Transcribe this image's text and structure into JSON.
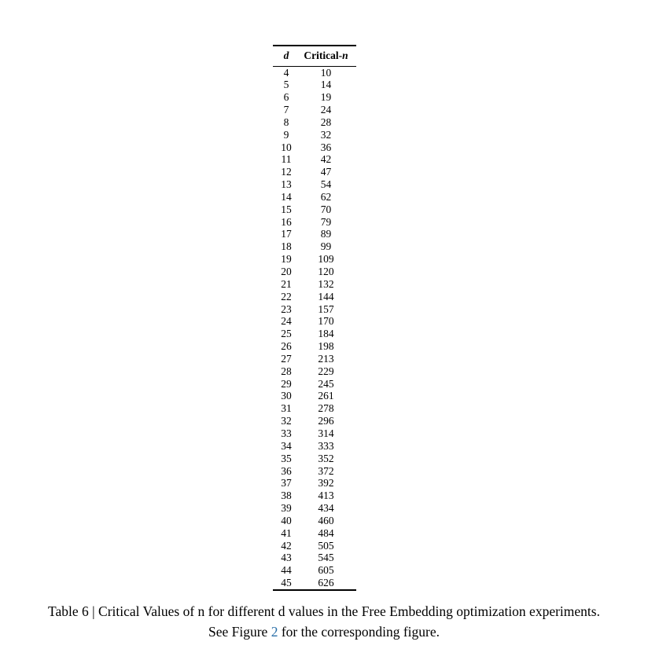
{
  "table": {
    "header": {
      "col_d": "d",
      "col_n_prefix": "Critical-",
      "col_n_italic": "n"
    },
    "rows": [
      {
        "d": "4",
        "n": "10"
      },
      {
        "d": "5",
        "n": "14"
      },
      {
        "d": "6",
        "n": "19"
      },
      {
        "d": "7",
        "n": "24"
      },
      {
        "d": "8",
        "n": "28"
      },
      {
        "d": "9",
        "n": "32"
      },
      {
        "d": "10",
        "n": "36"
      },
      {
        "d": "11",
        "n": "42"
      },
      {
        "d": "12",
        "n": "47"
      },
      {
        "d": "13",
        "n": "54"
      },
      {
        "d": "14",
        "n": "62"
      },
      {
        "d": "15",
        "n": "70"
      },
      {
        "d": "16",
        "n": "79"
      },
      {
        "d": "17",
        "n": "89"
      },
      {
        "d": "18",
        "n": "99"
      },
      {
        "d": "19",
        "n": "109"
      },
      {
        "d": "20",
        "n": "120"
      },
      {
        "d": "21",
        "n": "132"
      },
      {
        "d": "22",
        "n": "144"
      },
      {
        "d": "23",
        "n": "157"
      },
      {
        "d": "24",
        "n": "170"
      },
      {
        "d": "25",
        "n": "184"
      },
      {
        "d": "26",
        "n": "198"
      },
      {
        "d": "27",
        "n": "213"
      },
      {
        "d": "28",
        "n": "229"
      },
      {
        "d": "29",
        "n": "245"
      },
      {
        "d": "30",
        "n": "261"
      },
      {
        "d": "31",
        "n": "278"
      },
      {
        "d": "32",
        "n": "296"
      },
      {
        "d": "33",
        "n": "314"
      },
      {
        "d": "34",
        "n": "333"
      },
      {
        "d": "35",
        "n": "352"
      },
      {
        "d": "36",
        "n": "372"
      },
      {
        "d": "37",
        "n": "392"
      },
      {
        "d": "38",
        "n": "413"
      },
      {
        "d": "39",
        "n": "434"
      },
      {
        "d": "40",
        "n": "460"
      },
      {
        "d": "41",
        "n": "484"
      },
      {
        "d": "42",
        "n": "505"
      },
      {
        "d": "43",
        "n": "545"
      },
      {
        "d": "44",
        "n": "605"
      },
      {
        "d": "45",
        "n": "626"
      }
    ]
  },
  "caption": {
    "line1": "Table 6 | Critical Values of n for different d values in the Free Embedding optimization experiments.",
    "line2_before": "See Figure ",
    "line2_link": "2",
    "line2_after": " for the corresponding figure."
  },
  "colors": {
    "text": "#000000",
    "link_blue": "#2a6fa8",
    "background": "#ffffff"
  }
}
